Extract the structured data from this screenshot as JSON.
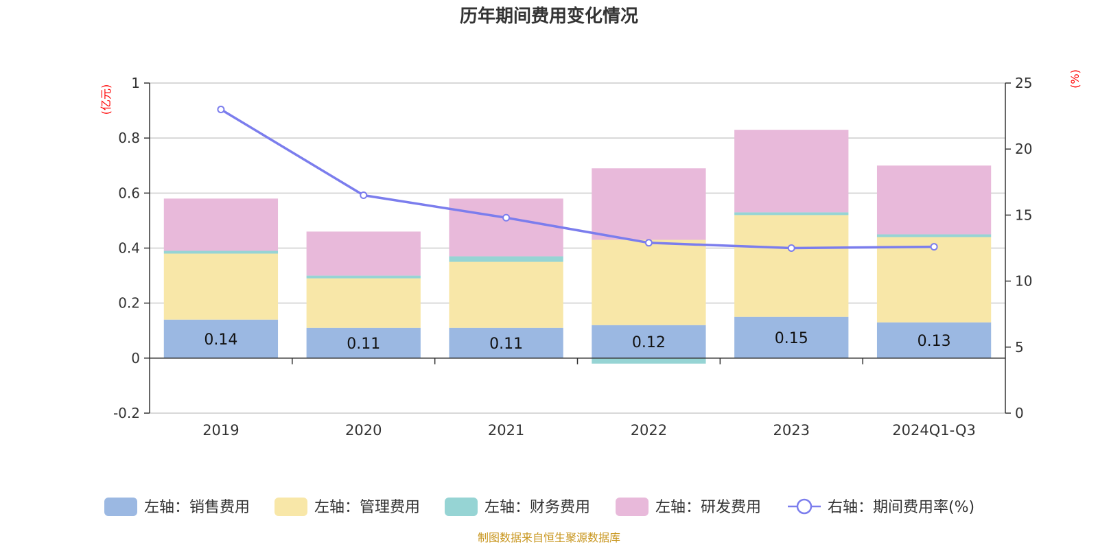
{
  "chart_data": {
    "type": "bar",
    "stacked": true,
    "title": "历年期间费用变化情况",
    "categories": [
      "2019",
      "2020",
      "2021",
      "2022",
      "2023",
      "2024Q1-Q3"
    ],
    "left_axis": {
      "unit": "(亿元)",
      "ylim": [
        -0.2,
        1
      ],
      "ticks": [
        -0.2,
        0,
        0.2,
        0.4,
        0.6,
        0.8,
        1
      ]
    },
    "right_axis": {
      "unit": "(%)",
      "ylim": [
        0,
        25
      ],
      "ticks": [
        0,
        5,
        10,
        15,
        20,
        25
      ]
    },
    "series": [
      {
        "name": "左轴：销售费用",
        "axis": "left",
        "kind": "bar",
        "color": "#9bb8e2",
        "values": [
          0.14,
          0.11,
          0.11,
          0.12,
          0.15,
          0.13
        ],
        "show_labels": true
      },
      {
        "name": "左轴：管理费用",
        "axis": "left",
        "kind": "bar",
        "color": "#f8e7a8",
        "values": [
          0.24,
          0.18,
          0.24,
          0.31,
          0.37,
          0.31
        ]
      },
      {
        "name": "左轴：财务费用",
        "axis": "left",
        "kind": "bar",
        "color": "#96d4d4",
        "values": [
          0.01,
          0.01,
          0.02,
          -0.02,
          0.01,
          0.01
        ]
      },
      {
        "name": "左轴：研发费用",
        "axis": "left",
        "kind": "bar",
        "color": "#e8b9da",
        "values": [
          0.19,
          0.16,
          0.21,
          0.26,
          0.3,
          0.25
        ]
      },
      {
        "name": "右轴：期间费用率(%)",
        "axis": "right",
        "kind": "line",
        "color": "#7b7ded",
        "values": [
          23,
          16.5,
          14.8,
          12.9,
          12.5,
          12.6
        ]
      }
    ],
    "grid": true,
    "legend": "bottom",
    "source": "制图数据来自恒生聚源数据库"
  }
}
